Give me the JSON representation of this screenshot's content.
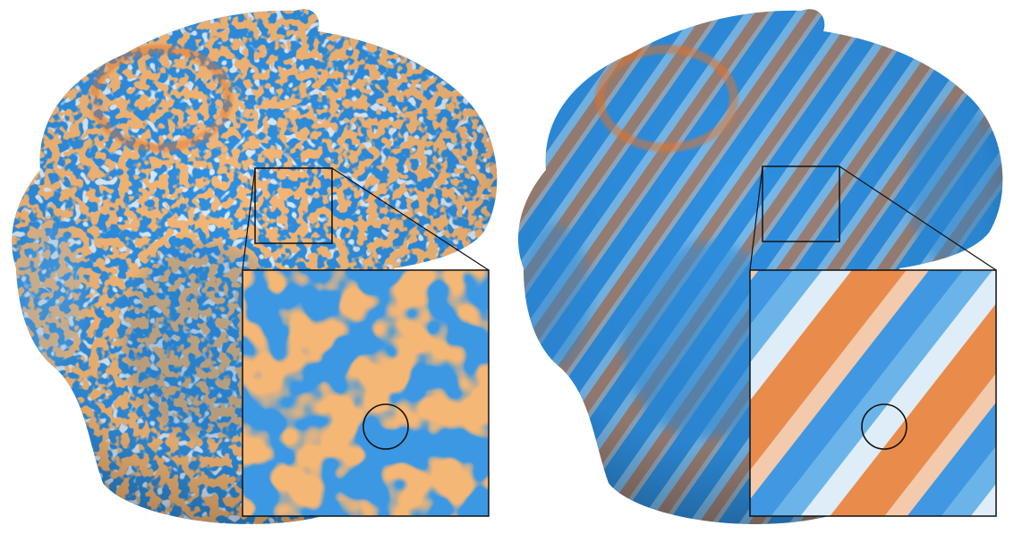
{
  "figure": {
    "panels": [
      {
        "id": "left",
        "pattern": "noisy-speckle",
        "zoom_inset": true,
        "marker": "circle"
      },
      {
        "id": "right",
        "pattern": "smooth-stripes",
        "zoom_inset": true,
        "marker": "circle"
      }
    ]
  },
  "colors": {
    "background": "#ffffff",
    "blue": "#2f8fe0",
    "light_blue": "#8fc6f0",
    "white": "#f4f7fa",
    "orange": "#e8782e",
    "outline": "#111111"
  }
}
